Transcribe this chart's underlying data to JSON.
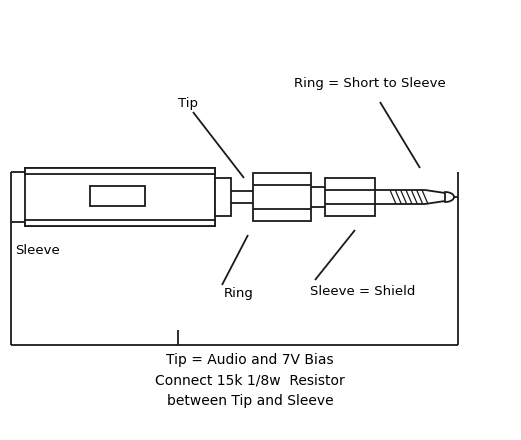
{
  "bg_color": "#ffffff",
  "line_color": "#1a1a1a",
  "fig_width": 5.21,
  "fig_height": 4.4,
  "dpi": 100,
  "labels": {
    "tip": "Tip",
    "ring_top": "Ring = Short to Sleeve",
    "ring_bottom": "Ring",
    "sleeve": "Sleeve",
    "sleeve_shield": "Sleeve = Shield",
    "tip_note": "Tip = Audio and 7V Bias\nConnect 15k 1/8w  Resistor\nbetween Tip and Sleeve"
  },
  "font_size": 9.5,
  "font_family": "DejaVu Sans"
}
